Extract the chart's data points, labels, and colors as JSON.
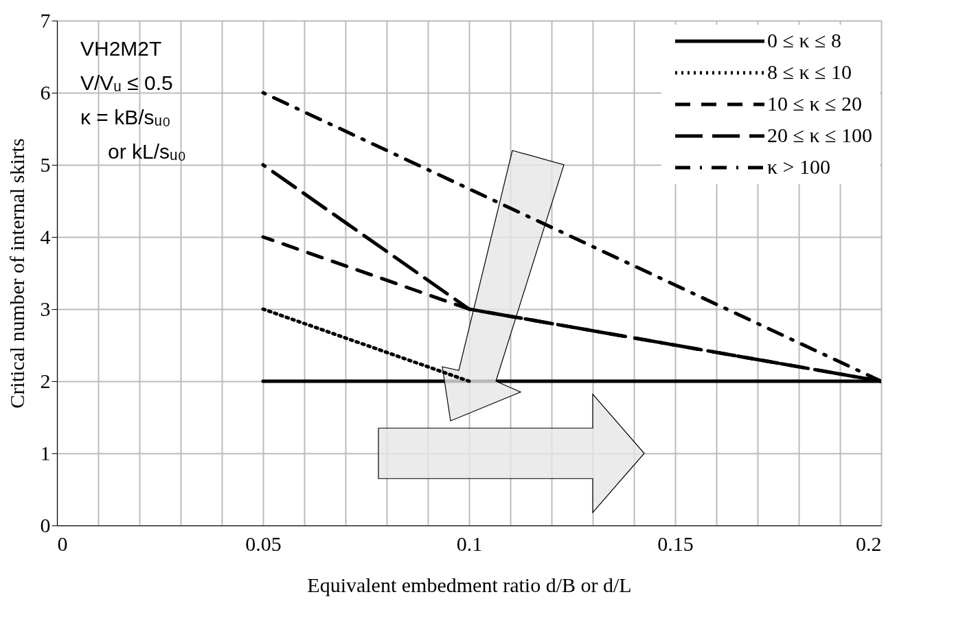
{
  "chart_data": {
    "type": "line",
    "xlabel": "Equivalent embedment ratio   d/B or d/L",
    "ylabel": "Critical number of internal skirts",
    "annotations": [
      "VH2M2T",
      "V/Vᵤ ≤ 0.5",
      "κ   = kB/sᵤ₀",
      "or kL/sᵤ₀"
    ],
    "xlim": [
      0,
      0.2
    ],
    "ylim": [
      0,
      7
    ],
    "xticks": [
      0,
      {
        "value": 0.01,
        "label": null
      },
      {
        "value": 0.02,
        "label": null
      },
      {
        "value": 0.03,
        "label": null
      },
      {
        "value": 0.04,
        "label": null
      },
      0.05,
      {
        "value": 0.06,
        "label": null
      },
      {
        "value": 0.07,
        "label": null
      },
      {
        "value": 0.08,
        "label": null
      },
      {
        "value": 0.09,
        "label": null
      },
      0.1,
      {
        "value": 0.11,
        "label": null
      },
      {
        "value": 0.12,
        "label": null
      },
      {
        "value": 0.13,
        "label": null
      },
      {
        "value": 0.14,
        "label": null
      },
      0.15,
      {
        "value": 0.16,
        "label": null
      },
      {
        "value": 0.17,
        "label": null
      },
      {
        "value": 0.18,
        "label": null
      },
      {
        "value": 0.19,
        "label": null
      },
      0.2
    ],
    "yticks": [
      0,
      1,
      2,
      3,
      4,
      5,
      6,
      7
    ],
    "grid": true,
    "legend": "top right",
    "marker": "none",
    "series": [
      {
        "name": "0 ≤ κ ≤ 8",
        "color": "#000000",
        "line_style": "solid",
        "x": [
          0.05,
          0.2
        ],
        "values": [
          2,
          2
        ]
      },
      {
        "name": "8 ≤ κ ≤ 10",
        "color": "#000000",
        "line_style": "dotted",
        "x": [
          0.05,
          0.1
        ],
        "values": [
          3,
          2
        ]
      },
      {
        "name": "10 ≤ κ ≤ 20",
        "color": "#000000",
        "line_style": "dashed",
        "x": [
          0.05,
          0.1,
          0.2
        ],
        "values": [
          4,
          3,
          2
        ]
      },
      {
        "name": "20 ≤ κ ≤ 100",
        "color": "#000000",
        "line_style": "long dashed",
        "x": [
          0.05,
          0.1,
          0.2
        ],
        "values": [
          5,
          3,
          2
        ]
      },
      {
        "name": "κ > 100",
        "color": "#000000",
        "line_style": "dash-dot",
        "x": [
          0.05,
          0.2
        ],
        "values": [
          6,
          2
        ]
      }
    ]
  }
}
